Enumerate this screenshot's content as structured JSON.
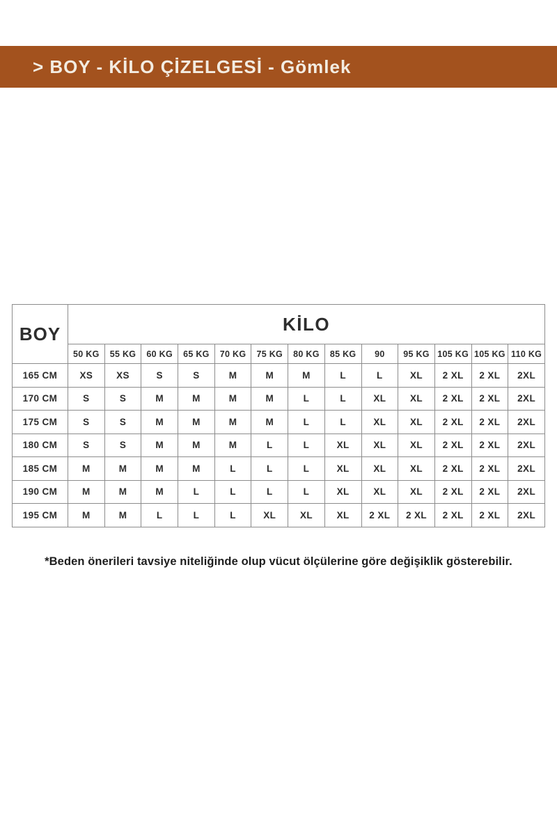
{
  "banner": {
    "text": "> BOY - KİLO ÇİZELGESİ - Gömlek",
    "bg_color": "#A3521E",
    "text_color": "#F3ECE1"
  },
  "chart_data": {
    "type": "table",
    "title": "BOY - KİLO ÇİZELGESİ - Gömlek",
    "corner_header": "BOY",
    "group_header": "KİLO",
    "weight_headers": [
      "50 KG",
      "55 KG",
      "60 KG",
      "65 KG",
      "70 KG",
      "75 KG",
      "80 KG",
      "85 KG",
      "90",
      "95 KG",
      "105 KG",
      "105 KG",
      "110 KG"
    ],
    "rows": [
      {
        "height": "165 CM",
        "sizes": [
          "XS",
          "XS",
          "S",
          "S",
          "M",
          "M",
          "M",
          "L",
          "L",
          "XL",
          "2 XL",
          "2 XL",
          "2XL"
        ]
      },
      {
        "height": "170 CM",
        "sizes": [
          "S",
          "S",
          "M",
          "M",
          "M",
          "M",
          "L",
          "L",
          "XL",
          "XL",
          "2 XL",
          "2 XL",
          "2XL"
        ]
      },
      {
        "height": "175 CM",
        "sizes": [
          "S",
          "S",
          "M",
          "M",
          "M",
          "M",
          "L",
          "L",
          "XL",
          "XL",
          "2 XL",
          "2 XL",
          "2XL"
        ]
      },
      {
        "height": "180 CM",
        "sizes": [
          "S",
          "S",
          "M",
          "M",
          "M",
          "L",
          "L",
          "XL",
          "XL",
          "XL",
          "2 XL",
          "2 XL",
          "2XL"
        ]
      },
      {
        "height": "185 CM",
        "sizes": [
          "M",
          "M",
          "M",
          "M",
          "L",
          "L",
          "L",
          "XL",
          "XL",
          "XL",
          "2 XL",
          "2 XL",
          "2XL"
        ]
      },
      {
        "height": "190 CM",
        "sizes": [
          "M",
          "M",
          "M",
          "L",
          "L",
          "L",
          "L",
          "XL",
          "XL",
          "XL",
          "2 XL",
          "2 XL",
          "2XL"
        ]
      },
      {
        "height": "195 CM",
        "sizes": [
          "M",
          "M",
          "L",
          "L",
          "L",
          "XL",
          "XL",
          "XL",
          "2 XL",
          "2 XL",
          "2 XL",
          "2 XL",
          "2XL"
        ]
      }
    ]
  },
  "footnote": {
    "text": "*Beden önerileri tavsiye niteliğinde olup vücut ölçülerine göre değişiklik gösterebilir."
  },
  "colors": {
    "banner_bg": "#A3521E",
    "banner_text": "#F3ECE1",
    "table_border": "#8c8c8c",
    "table_text": "#2d2d2d",
    "page_bg": "#ffffff"
  }
}
